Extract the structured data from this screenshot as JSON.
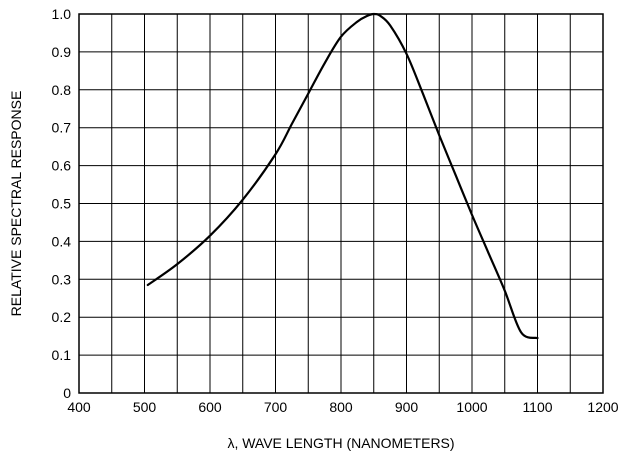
{
  "chart_data": {
    "type": "line",
    "xlabel": "λ, WAVE LENGTH (NANOMETERS)",
    "ylabel": "RELATIVE SPECTRAL RESPONSE",
    "xlim": [
      400,
      1200
    ],
    "ylim": [
      0,
      1.0
    ],
    "x_ticks": [
      400,
      500,
      600,
      700,
      800,
      900,
      1000,
      1100,
      1200
    ],
    "x_tick_labels": [
      "400",
      "500",
      "600",
      "700",
      "800",
      "900",
      "1000",
      "1100",
      "1200"
    ],
    "y_ticks": [
      0,
      0.1,
      0.2,
      0.3,
      0.4,
      0.5,
      0.6,
      0.7,
      0.8,
      0.9,
      1.0
    ],
    "y_tick_labels": [
      "0",
      "0.1",
      "0.2",
      "0.3",
      "0.4",
      "0.5",
      "0.6",
      "0.7",
      "0.8",
      "0.9",
      "1.0"
    ],
    "grid": true,
    "grid_x_step": 50,
    "grid_y_step": 0.1,
    "line_color": "#000000",
    "series": [
      {
        "x": [
          505,
          550,
          600,
          650,
          700,
          725,
          750,
          775,
          800,
          825,
          840,
          850,
          860,
          875,
          900,
          925,
          950,
          975,
          1000,
          1025,
          1050,
          1075,
          1100
        ],
        "y": [
          0.285,
          0.34,
          0.415,
          0.51,
          0.63,
          0.71,
          0.79,
          0.87,
          0.94,
          0.98,
          0.995,
          1.0,
          0.995,
          0.97,
          0.895,
          0.79,
          0.68,
          0.575,
          0.47,
          0.37,
          0.27,
          0.16,
          0.145
        ]
      }
    ]
  }
}
